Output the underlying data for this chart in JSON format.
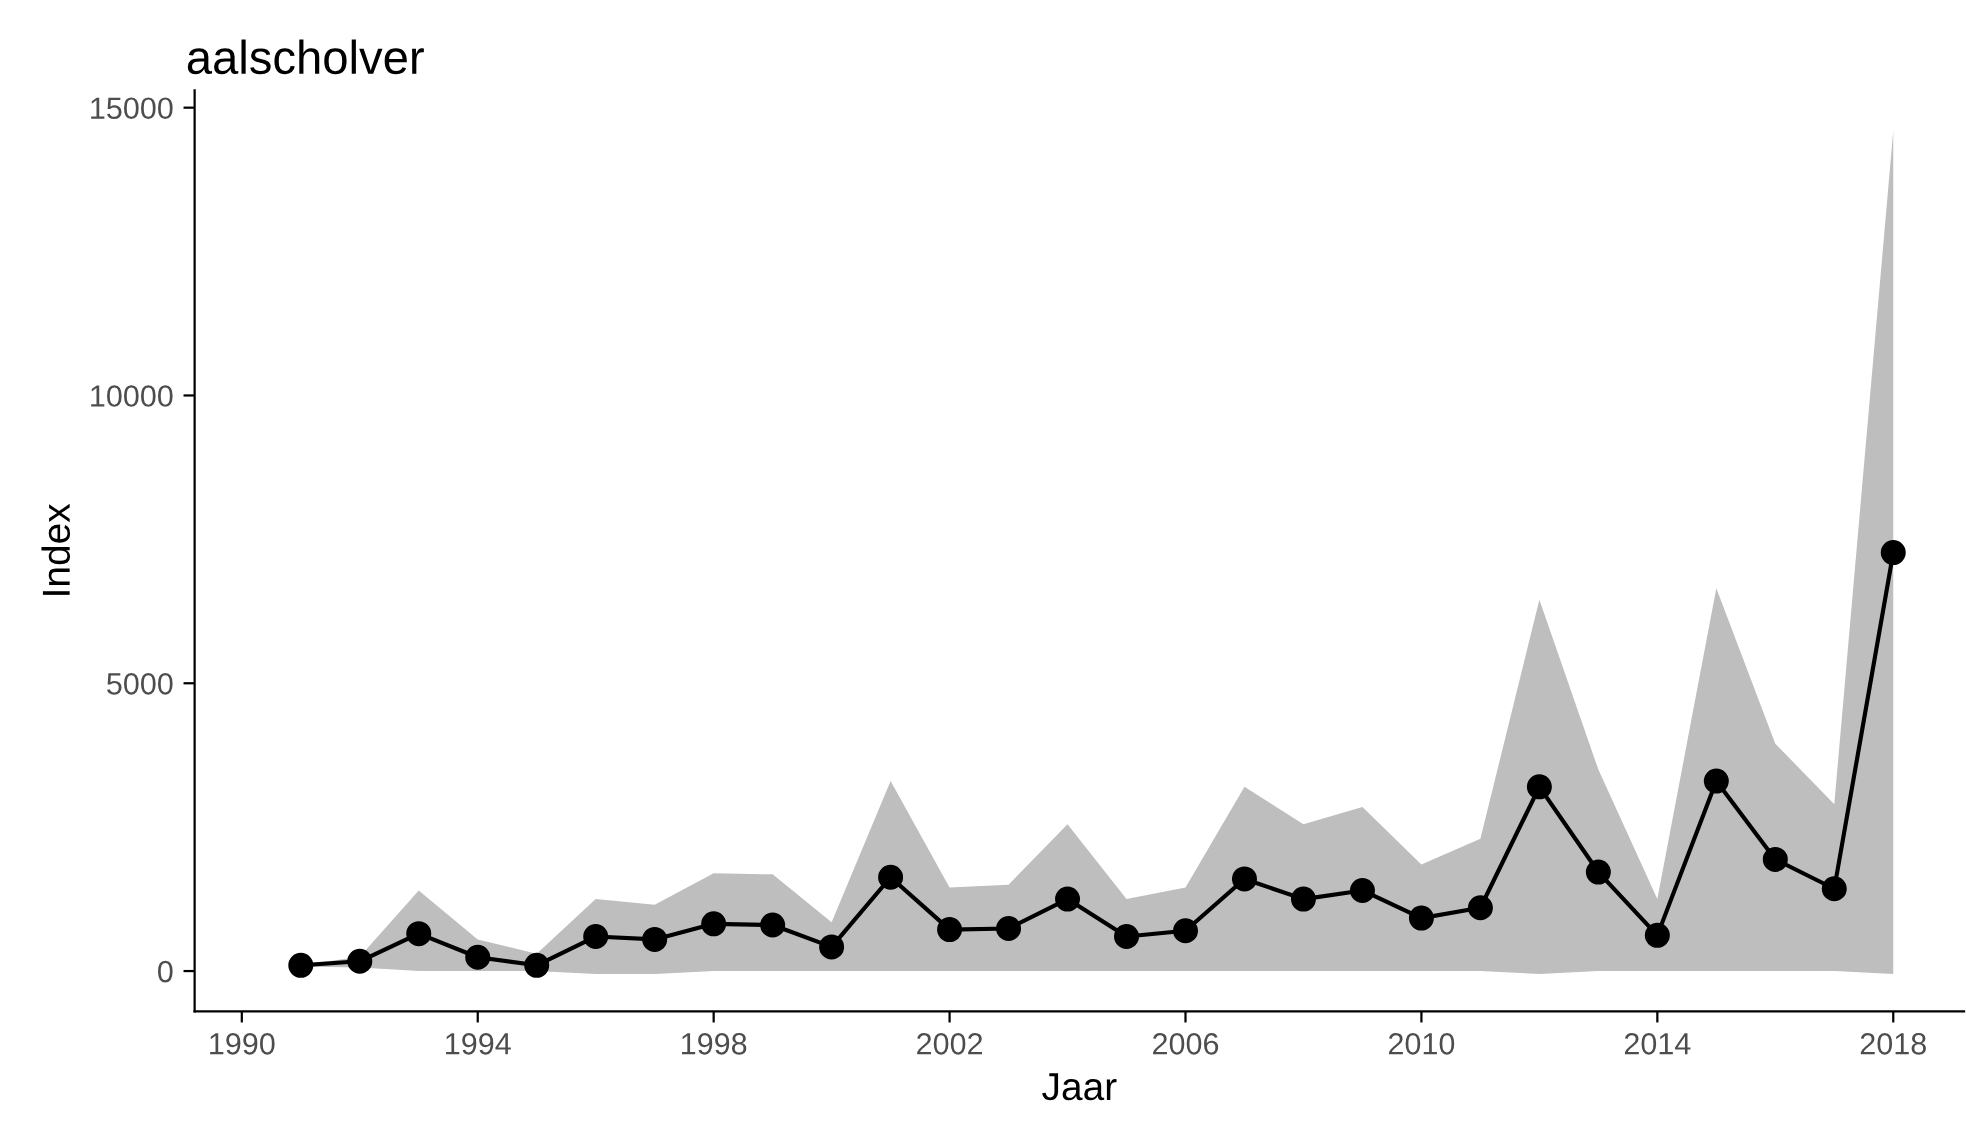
{
  "chart_data": {
    "type": "line",
    "title": "aalscholver",
    "xlabel": "Jaar",
    "ylabel": "Index",
    "x": [
      1991,
      1992,
      1993,
      1994,
      1995,
      1996,
      1997,
      1998,
      1999,
      2000,
      2001,
      2002,
      2003,
      2004,
      2005,
      2006,
      2007,
      2008,
      2009,
      2010,
      2011,
      2012,
      2013,
      2014,
      2015,
      2016,
      2017,
      2018
    ],
    "series": [
      {
        "color": "#000000",
        "values": [
          100,
          170,
          650,
          240,
          100,
          600,
          550,
          820,
          800,
          420,
          1630,
          720,
          740,
          1250,
          600,
          700,
          1600,
          1250,
          1400,
          920,
          1100,
          3200,
          1720,
          620,
          3300,
          1940,
          1430,
          7270
        ],
        "upper": [
          100,
          250,
          1400,
          550,
          300,
          1250,
          1150,
          1700,
          1680,
          850,
          3300,
          1450,
          1500,
          2550,
          1250,
          1450,
          3200,
          2550,
          2850,
          1850,
          2300,
          6450,
          3500,
          1250,
          6650,
          3950,
          2900,
          14600
        ],
        "lower": [
          80,
          60,
          0,
          0,
          0,
          -50,
          -50,
          0,
          0,
          0,
          0,
          0,
          0,
          0,
          0,
          0,
          0,
          0,
          0,
          0,
          0,
          -50,
          0,
          0,
          0,
          0,
          0,
          -50
        ]
      }
    ],
    "xlim": [
      1989.2,
      2019.2
    ],
    "ylim": [
      -700,
      15300
    ],
    "xticks": [
      1990,
      1994,
      1998,
      2002,
      2006,
      2010,
      2014,
      2018
    ],
    "yticks": [
      0,
      5000,
      10000,
      15000
    ],
    "grid": false,
    "marker": "circle",
    "line_style": "solid",
    "legend": false
  }
}
